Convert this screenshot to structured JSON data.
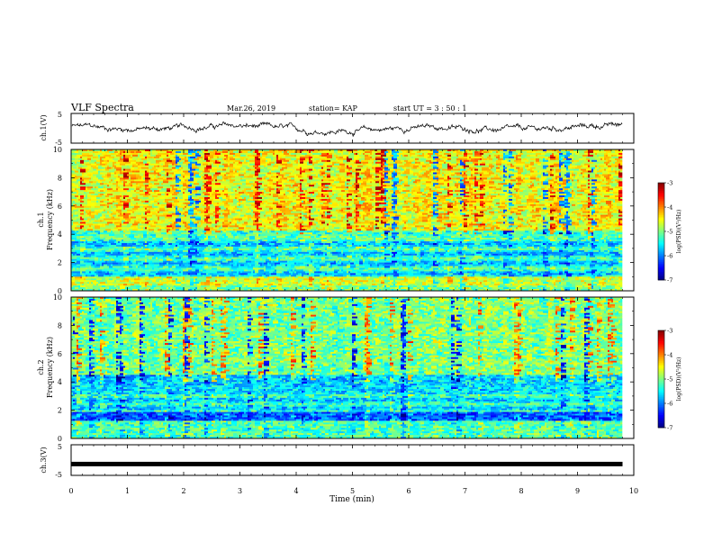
{
  "header": {
    "title": "VLF Spectra",
    "date": "Mar.26, 2019",
    "station": "station= KAP",
    "start": "start  UT  =   3 : 50 : 1"
  },
  "chart_data": [
    {
      "type": "line",
      "name": "ch1-waveform",
      "ylabel": "ch.1(V)",
      "ylim": [
        -5,
        5
      ],
      "yticks": [
        "5",
        "-5"
      ],
      "xlim": [
        0,
        10
      ],
      "color": "#000000"
    },
    {
      "type": "heatmap",
      "name": "ch1-spectrogram",
      "ylabel": "ch.1\nFrequency  (kHz)",
      "ylim": [
        0,
        10
      ],
      "yticks": [
        "0",
        "2",
        "4",
        "6",
        "8",
        "10"
      ],
      "xlim": [
        0,
        9.8
      ],
      "colorbar": {
        "label": "log(PSD)(V²/Hz)",
        "ticks": [
          "-3",
          "-4",
          "-5",
          "-6",
          "-7"
        ],
        "range": [
          -7,
          -3
        ]
      }
    },
    {
      "type": "heatmap",
      "name": "ch2-spectrogram",
      "ylabel": "ch.2\nFrequency  (kHz)",
      "ylim": [
        0,
        10
      ],
      "yticks": [
        "0",
        "2",
        "4",
        "6",
        "8",
        "10"
      ],
      "xlim": [
        0,
        9.8
      ],
      "colorbar": {
        "label": "log(PSD)(V²/Hz)",
        "ticks": [
          "-3",
          "-4",
          "-5",
          "-6",
          "-7"
        ],
        "range": [
          -7,
          -3
        ]
      }
    },
    {
      "type": "line",
      "name": "ch3-waveform",
      "ylabel": "ch.3(V)",
      "ylim": [
        -5,
        5
      ],
      "yticks": [
        "5",
        "-5"
      ],
      "xlim": [
        0,
        10
      ],
      "x": [
        0,
        9.8
      ],
      "y": [
        -1.3,
        -1.3
      ],
      "color": "#000000"
    }
  ],
  "xaxis": {
    "label": "Time  (min)",
    "ticks": [
      "0",
      "1",
      "2",
      "3",
      "4",
      "5",
      "6",
      "7",
      "8",
      "9",
      "10"
    ],
    "range": [
      0,
      10
    ]
  }
}
